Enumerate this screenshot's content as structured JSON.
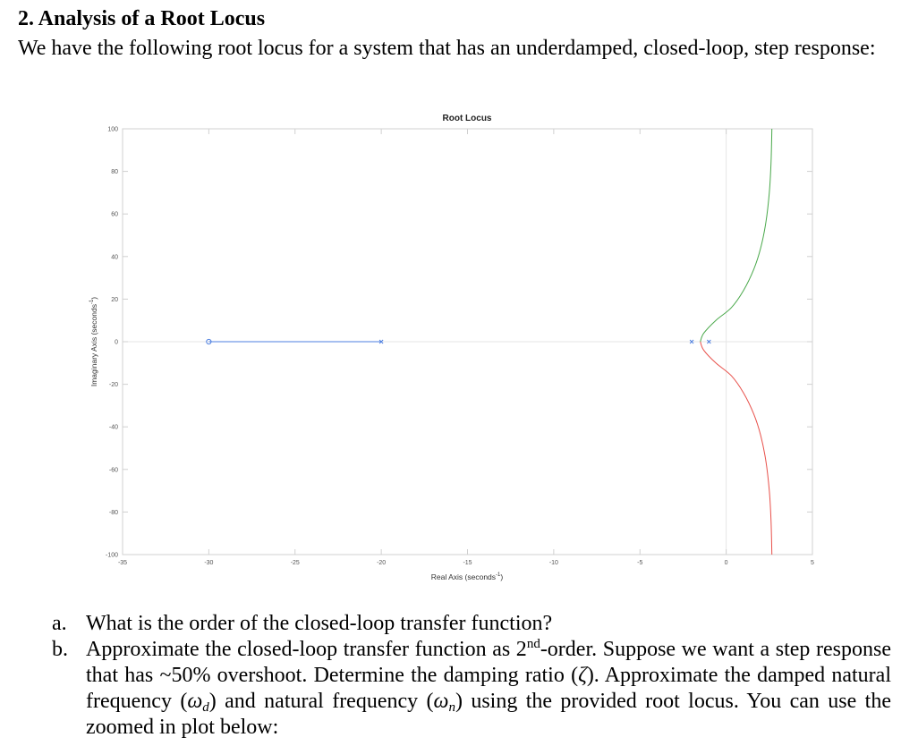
{
  "section": {
    "heading": "2. Analysis of a Root Locus",
    "intro": "We have the following root locus for a system that has an underdamped, closed-loop, step response:"
  },
  "chart_data": {
    "type": "line",
    "title": "Root Locus",
    "xlabel": "Real Axis (seconds",
    "xlabel_exp": "-1",
    "xlabel_close": ")",
    "ylabel": "Imaginary Axis (seconds",
    "ylabel_exp": "-1",
    "ylabel_close": ")",
    "xlim": [
      -35,
      5
    ],
    "ylim": [
      -100,
      100
    ],
    "xticks": [
      -35,
      -30,
      -25,
      -20,
      -15,
      -10,
      -5,
      0,
      5
    ],
    "yticks": [
      -100,
      -80,
      -60,
      -40,
      -20,
      0,
      20,
      40,
      60,
      80,
      100
    ],
    "grid": false,
    "poles": [
      [
        -20,
        0
      ],
      [
        -2,
        0
      ],
      [
        -1,
        0
      ]
    ],
    "zeros": [
      [
        -30,
        0
      ]
    ],
    "series": [
      {
        "color": "#4d7fe0",
        "points": [
          [
            -30,
            0
          ],
          [
            -20,
            0
          ]
        ]
      },
      {
        "color": "#49a84a",
        "points": [
          [
            -1.5,
            0
          ],
          [
            -1.3,
            4
          ],
          [
            -0.6,
            10
          ],
          [
            0.3,
            16
          ],
          [
            1.0,
            24
          ],
          [
            1.6,
            34
          ],
          [
            2.0,
            44
          ],
          [
            2.3,
            56
          ],
          [
            2.5,
            70
          ],
          [
            2.6,
            84
          ],
          [
            2.65,
            100
          ]
        ]
      },
      {
        "color": "#e8504a",
        "points": [
          [
            -1.5,
            0
          ],
          [
            -1.3,
            -4
          ],
          [
            -0.6,
            -10
          ],
          [
            0.3,
            -16
          ],
          [
            1.0,
            -24
          ],
          [
            1.6,
            -34
          ],
          [
            2.0,
            -44
          ],
          [
            2.3,
            -56
          ],
          [
            2.5,
            -70
          ],
          [
            2.6,
            -84
          ],
          [
            2.65,
            -100
          ]
        ]
      }
    ],
    "reference_line_x": 0,
    "colors": {
      "pole": "#4d7fe0",
      "zero": "#4d7fe0",
      "axis": "#d0d0d0",
      "tick_text": "#555555"
    }
  },
  "questions": [
    {
      "label": "a.",
      "text": "What is the order of the closed-loop transfer function?"
    },
    {
      "label": "b.",
      "t1": "Approximate the closed-loop transfer function as 2",
      "sup": "nd",
      "t2": "-order. Suppose we want a step response that has ~50% overshoot. Determine the damping ratio (",
      "zeta": "ζ",
      "t3": "). Approximate the damped natural frequency (",
      "wd": "ω",
      "wd_sub": "d",
      "t4": ") and natural frequency (",
      "wn": "ω",
      "wn_sub": "n",
      "t5": ") using the provided root locus. You can use the zoomed in plot below:"
    }
  ]
}
